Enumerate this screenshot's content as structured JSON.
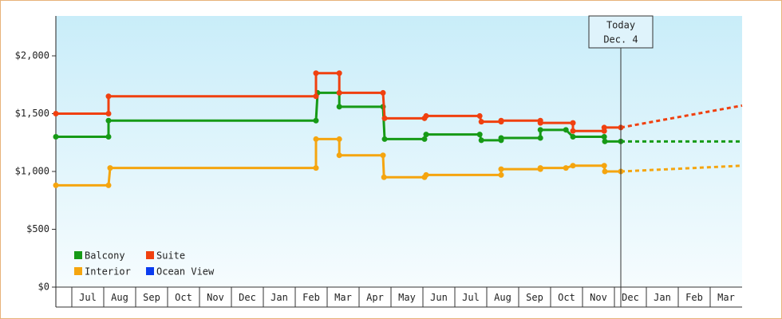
{
  "chart_data": {
    "type": "line",
    "step": true,
    "xlim": [
      0,
      21.5
    ],
    "ylim": [
      0,
      2345
    ],
    "yticks": [
      {
        "value": 0,
        "label": "$0"
      },
      {
        "value": 500,
        "label": "$500"
      },
      {
        "value": 1000,
        "label": "$1,000"
      },
      {
        "value": 1500,
        "label": "$1,500"
      },
      {
        "value": 2000,
        "label": "$2,000"
      }
    ],
    "categories": [
      null,
      "Jul",
      "Aug",
      "Sep",
      "Oct",
      "Nov",
      "Dec",
      "Jan",
      "Feb",
      "Mar",
      "Apr",
      "May",
      "Jun",
      "Jul",
      "Aug",
      "Sep",
      "Oct",
      "Nov",
      "Dec",
      "Jan",
      "Feb",
      "Mar"
    ],
    "xticks": [
      0.5,
      1.5,
      2.5,
      3.5,
      4.5,
      5.5,
      6.5,
      7.5,
      8.5,
      9.5,
      10.5,
      11.5,
      12.5,
      13.5,
      14.5,
      15.5,
      16.5,
      17.5,
      18.5,
      19.5,
      20.5
    ],
    "today": {
      "x": 17.7,
      "label": [
        "Today",
        "Dec. 4"
      ]
    },
    "legend": "lower left",
    "series": [
      {
        "name": "Balcony",
        "color": "#169a16",
        "x": [
          0,
          1.65,
          1.65,
          8.15,
          8.2,
          8.88,
          8.88,
          10.25,
          10.3,
          11.55,
          11.6,
          13.28,
          13.33,
          13.95,
          13.95,
          15.18,
          15.18,
          15.98,
          16.2,
          17.18,
          17.2,
          17.7
        ],
        "values": [
          1300,
          1300,
          1440,
          1440,
          1680,
          1680,
          1560,
          1560,
          1280,
          1280,
          1320,
          1320,
          1270,
          1270,
          1290,
          1290,
          1360,
          1360,
          1300,
          1300,
          1260,
          1260
        ],
        "projection": {
          "x": [
            17.7,
            21.5
          ],
          "values": [
            1260,
            1260
          ]
        }
      },
      {
        "name": "Suite",
        "color": "#f0400f",
        "x": [
          0,
          1.65,
          1.65,
          8.15,
          8.15,
          8.88,
          8.88,
          10.25,
          10.3,
          11.55,
          11.6,
          13.28,
          13.33,
          13.95,
          13.95,
          15.18,
          15.18,
          16.2,
          16.2,
          17.18,
          17.18,
          17.7
        ],
        "values": [
          1500,
          1500,
          1650,
          1650,
          1850,
          1850,
          1680,
          1680,
          1460,
          1460,
          1480,
          1480,
          1430,
          1430,
          1440,
          1440,
          1420,
          1420,
          1350,
          1350,
          1380,
          1380
        ],
        "projection": {
          "x": [
            17.7,
            21.5
          ],
          "values": [
            1380,
            1570
          ]
        }
      },
      {
        "name": "Interior",
        "color": "#f5a50f",
        "x": [
          0,
          1.65,
          1.7,
          8.15,
          8.15,
          8.88,
          8.88,
          10.25,
          10.28,
          11.55,
          11.6,
          13.95,
          13.95,
          15.18,
          15.18,
          15.98,
          16.2,
          17.18,
          17.2,
          17.7
        ],
        "values": [
          880,
          880,
          1030,
          1030,
          1280,
          1280,
          1140,
          1140,
          950,
          950,
          970,
          970,
          1020,
          1020,
          1030,
          1030,
          1050,
          1050,
          1000,
          1000
        ],
        "projection": {
          "x": [
            17.7,
            21.5
          ],
          "values": [
            1000,
            1050
          ]
        }
      },
      {
        "name": "Ocean View",
        "color": "#0a3cf0",
        "x": [],
        "values": []
      }
    ]
  }
}
